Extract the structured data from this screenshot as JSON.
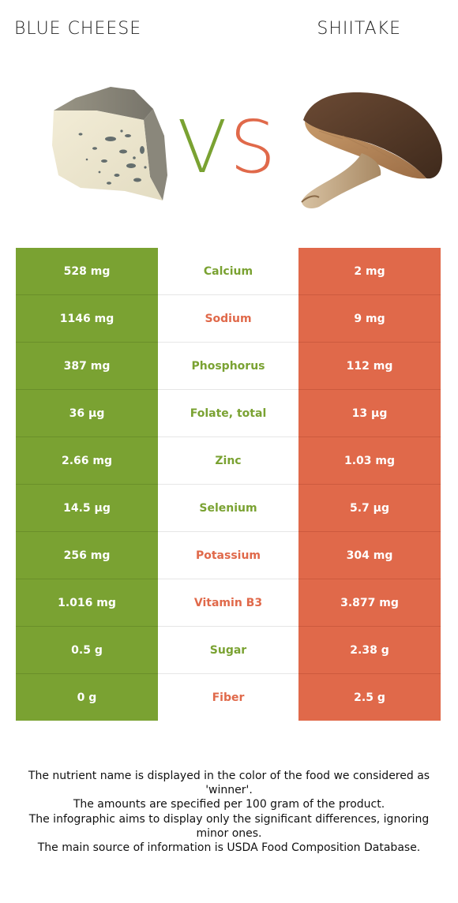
{
  "header": {
    "left_food": "BLUE CHEESE",
    "right_food": "SHIITAKE",
    "vs_left": "V",
    "vs_right": "S"
  },
  "colors": {
    "left_accent": "#7aa232",
    "right_accent": "#e0694a"
  },
  "images": {
    "left_icon": "blue-cheese-wedge-image",
    "right_icon": "shiitake-mushroom-image"
  },
  "rows": [
    {
      "left": "528 mg",
      "nutrient": "Calcium",
      "right": "2 mg",
      "winner": "left"
    },
    {
      "left": "1146 mg",
      "nutrient": "Sodium",
      "right": "9 mg",
      "winner": "right"
    },
    {
      "left": "387 mg",
      "nutrient": "Phosphorus",
      "right": "112 mg",
      "winner": "left"
    },
    {
      "left": "36 µg",
      "nutrient": "Folate, total",
      "right": "13 µg",
      "winner": "left"
    },
    {
      "left": "2.66 mg",
      "nutrient": "Zinc",
      "right": "1.03 mg",
      "winner": "left"
    },
    {
      "left": "14.5 µg",
      "nutrient": "Selenium",
      "right": "5.7 µg",
      "winner": "left"
    },
    {
      "left": "256 mg",
      "nutrient": "Potassium",
      "right": "304 mg",
      "winner": "right"
    },
    {
      "left": "1.016 mg",
      "nutrient": "Vitamin B3",
      "right": "3.877 mg",
      "winner": "right"
    },
    {
      "left": "0.5 g",
      "nutrient": "Sugar",
      "right": "2.38 g",
      "winner": "left"
    },
    {
      "left": "0 g",
      "nutrient": "Fiber",
      "right": "2.5 g",
      "winner": "right"
    }
  ],
  "footnote": {
    "line1": "The nutrient name is displayed in the color of the food we considered as 'winner'.",
    "line2": "The amounts are specified per 100 gram of the product.",
    "line3": "The infographic aims to display only the significant differences, ignoring minor ones.",
    "line4": "The main source of information is USDA Food Composition Database."
  }
}
